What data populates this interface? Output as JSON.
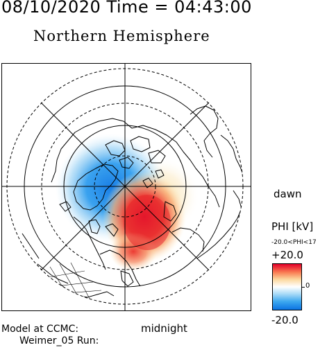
{
  "header": {
    "date": "08/10/2020",
    "time_label": "Time =",
    "time": "04:43:00"
  },
  "title": "Northern Hemisphere",
  "map": {
    "labels": {
      "right": "dawn",
      "bottom": "midnight"
    },
    "colormap": {
      "positive": "#e4002a",
      "zero": "#ffffff",
      "negative": "#0b73e3"
    }
  },
  "colorbar": {
    "label": "PHI [kV]",
    "range_text": "-20.0<PHI<17",
    "max_label": "+20.0",
    "mid_label": "0",
    "min_label": "-20.0"
  },
  "credits": {
    "line1": "Model at CCMC:",
    "line2": "Weimer_05 Run:"
  }
}
